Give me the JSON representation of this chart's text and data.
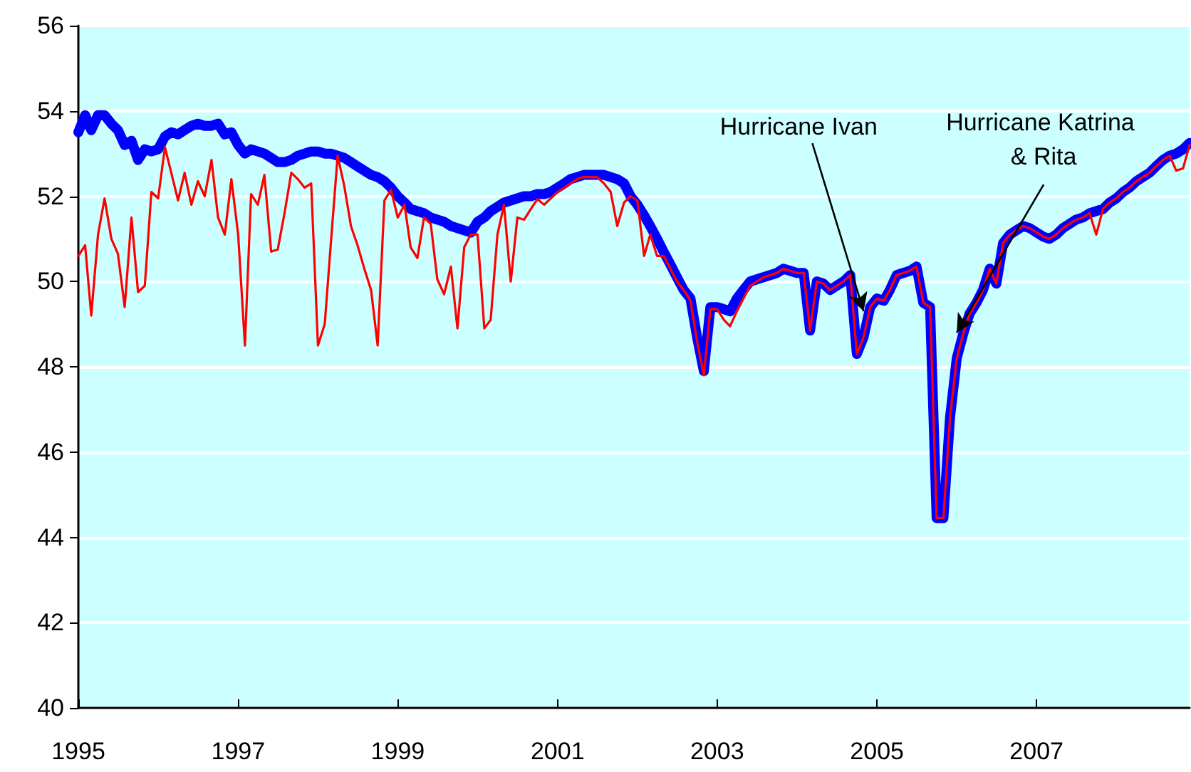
{
  "chart_data": {
    "type": "line",
    "x": [
      "1995-01",
      "1995-02",
      "1995-03",
      "1995-04",
      "1995-05",
      "1995-06",
      "1995-07",
      "1995-08",
      "1995-09",
      "1995-10",
      "1995-11",
      "1995-12",
      "1996-01",
      "1996-02",
      "1996-03",
      "1996-04",
      "1996-05",
      "1996-06",
      "1996-07",
      "1996-08",
      "1996-09",
      "1996-10",
      "1996-11",
      "1996-12",
      "1997-01",
      "1997-02",
      "1997-03",
      "1997-04",
      "1997-05",
      "1997-06",
      "1997-07",
      "1997-08",
      "1997-09",
      "1997-10",
      "1997-11",
      "1997-12",
      "1998-01",
      "1998-02",
      "1998-03",
      "1998-04",
      "1998-05",
      "1998-06",
      "1998-07",
      "1998-08",
      "1998-09",
      "1998-10",
      "1998-11",
      "1998-12",
      "1999-01",
      "1999-02",
      "1999-03",
      "1999-04",
      "1999-05",
      "1999-06",
      "1999-07",
      "1999-08",
      "1999-09",
      "1999-10",
      "1999-11",
      "1999-12",
      "2000-01",
      "2000-02",
      "2000-03",
      "2000-04",
      "2000-05",
      "2000-06",
      "2000-07",
      "2000-08",
      "2000-09",
      "2000-10",
      "2000-11",
      "2000-12",
      "2001-01",
      "2001-02",
      "2001-03",
      "2001-04",
      "2001-05",
      "2001-06",
      "2001-07",
      "2001-08",
      "2001-09",
      "2001-10",
      "2001-11",
      "2001-12",
      "2002-01",
      "2002-02",
      "2002-03",
      "2002-04",
      "2002-05",
      "2002-06",
      "2002-07",
      "2002-08",
      "2002-09",
      "2002-10",
      "2002-11",
      "2002-12",
      "2003-01",
      "2003-02",
      "2003-03",
      "2003-04",
      "2003-05",
      "2003-06",
      "2003-07",
      "2003-08",
      "2003-09",
      "2003-10",
      "2003-11",
      "2003-12",
      "2004-01",
      "2004-02",
      "2004-03",
      "2004-04",
      "2004-05",
      "2004-06",
      "2004-07",
      "2004-08",
      "2004-09",
      "2004-10",
      "2004-11",
      "2004-12",
      "2005-01",
      "2005-02",
      "2005-03",
      "2005-04",
      "2005-05",
      "2005-06",
      "2005-07",
      "2005-08",
      "2005-09",
      "2005-10",
      "2005-11",
      "2005-12",
      "2006-01",
      "2006-02",
      "2006-03",
      "2006-04",
      "2006-05",
      "2006-06",
      "2006-07",
      "2006-08",
      "2006-09",
      "2006-10",
      "2006-11",
      "2006-12",
      "2007-01",
      "2007-02",
      "2007-03",
      "2007-04",
      "2007-05",
      "2007-06",
      "2007-07",
      "2007-08",
      "2007-09",
      "2007-10",
      "2007-11",
      "2007-12",
      "2008-01",
      "2008-02",
      "2008-03",
      "2008-04",
      "2008-05",
      "2008-06",
      "2008-07",
      "2008-08",
      "2008-09",
      "2008-10",
      "2008-11",
      "2008-12"
    ],
    "series": [
      {
        "color": "#0000ff",
        "values": [
          53.5,
          53.9,
          53.55,
          53.9,
          53.9,
          53.7,
          53.55,
          53.2,
          53.3,
          52.85,
          53.1,
          53.05,
          53.1,
          53.4,
          53.5,
          53.45,
          53.55,
          53.65,
          53.7,
          53.65,
          53.65,
          53.7,
          53.45,
          53.5,
          53.2,
          53.0,
          53.1,
          53.05,
          53.0,
          52.9,
          52.8,
          52.8,
          52.85,
          52.95,
          53.0,
          53.05,
          53.05,
          53.0,
          53.0,
          52.95,
          52.9,
          52.8,
          52.7,
          52.6,
          52.5,
          52.45,
          52.35,
          52.2,
          52.0,
          51.85,
          51.7,
          51.65,
          51.6,
          51.5,
          51.45,
          51.4,
          51.3,
          51.25,
          51.2,
          51.15,
          51.4,
          51.5,
          51.65,
          51.75,
          51.85,
          51.9,
          51.95,
          52.0,
          52.0,
          52.05,
          52.05,
          52.1,
          52.2,
          52.3,
          52.4,
          52.45,
          52.5,
          52.5,
          52.5,
          52.5,
          52.45,
          52.4,
          52.3,
          52.0,
          51.8,
          51.55,
          51.3,
          51.0,
          50.7,
          50.4,
          50.1,
          49.8,
          49.6,
          48.7,
          47.9,
          49.4,
          49.4,
          49.35,
          49.3,
          49.6,
          49.8,
          50.0,
          50.05,
          50.1,
          50.15,
          50.2,
          50.3,
          50.25,
          50.2,
          50.2,
          48.85,
          50.0,
          49.95,
          49.8,
          49.9,
          50.0,
          50.15,
          48.3,
          48.7,
          49.4,
          49.6,
          49.55,
          49.8,
          50.15,
          50.2,
          50.25,
          50.35,
          49.5,
          49.4,
          44.45,
          44.45,
          46.8,
          48.2,
          48.8,
          49.25,
          49.5,
          49.8,
          50.3,
          49.95,
          50.9,
          51.1,
          51.2,
          51.3,
          51.25,
          51.15,
          51.05,
          51.0,
          51.1,
          51.25,
          51.35,
          51.45,
          51.5,
          51.6,
          51.65,
          51.7,
          51.85,
          51.95,
          52.1,
          52.2,
          52.35,
          52.45,
          52.55,
          52.7,
          52.85,
          52.95,
          53.0,
          53.1,
          53.25
        ]
      },
      {
        "color": "#ff0000",
        "values": [
          50.6,
          50.85,
          49.2,
          51.1,
          51.95,
          51.0,
          50.65,
          49.4,
          51.5,
          49.75,
          49.9,
          52.1,
          51.95,
          53.15,
          52.55,
          51.9,
          52.55,
          51.8,
          52.35,
          52.0,
          52.85,
          51.5,
          51.1,
          52.4,
          51.1,
          48.5,
          52.05,
          51.8,
          52.5,
          50.7,
          50.75,
          51.6,
          52.55,
          52.4,
          52.2,
          52.3,
          48.5,
          49.0,
          50.9,
          52.95,
          52.25,
          51.3,
          50.85,
          50.3,
          49.8,
          48.5,
          51.9,
          52.15,
          51.5,
          51.8,
          50.8,
          50.55,
          51.5,
          51.35,
          50.05,
          49.7,
          50.35,
          48.9,
          50.8,
          51.1,
          51.1,
          48.9,
          49.1,
          51.1,
          51.8,
          50.0,
          51.5,
          51.45,
          51.7,
          51.93,
          51.8,
          51.95,
          52.1,
          52.2,
          52.3,
          52.4,
          52.45,
          52.45,
          52.45,
          52.3,
          52.1,
          51.3,
          51.85,
          52.0,
          51.9,
          50.6,
          51.1,
          50.6,
          50.6,
          50.3,
          50.0,
          49.8,
          49.55,
          48.6,
          47.8,
          49.35,
          49.35,
          49.1,
          48.95,
          49.3,
          49.6,
          49.9,
          50.0,
          50.1,
          50.15,
          50.2,
          50.3,
          50.25,
          50.2,
          50.2,
          48.85,
          50.0,
          49.95,
          49.8,
          49.9,
          50.0,
          50.15,
          48.3,
          48.7,
          49.4,
          49.6,
          49.55,
          49.8,
          50.15,
          50.2,
          50.25,
          50.35,
          49.5,
          49.4,
          44.45,
          44.45,
          46.8,
          48.2,
          48.8,
          49.25,
          49.5,
          49.8,
          50.3,
          49.95,
          50.9,
          51.1,
          51.2,
          51.3,
          51.25,
          51.15,
          51.05,
          51.0,
          51.1,
          51.25,
          51.35,
          51.45,
          51.5,
          51.6,
          51.1,
          51.7,
          51.85,
          51.95,
          52.1,
          52.2,
          52.35,
          52.45,
          52.55,
          52.7,
          52.85,
          52.95,
          52.6,
          52.65,
          53.2
        ]
      }
    ],
    "xlim": [
      "1995-01",
      "2008-12"
    ],
    "xticks": [
      "1995",
      "1997",
      "1999",
      "2001",
      "2003",
      "2005",
      "2007"
    ],
    "ylim": [
      40,
      56
    ],
    "yticks": [
      40,
      42,
      44,
      46,
      48,
      50,
      52,
      54,
      56
    ],
    "grid": "y",
    "marker": "none",
    "line_style": "solid",
    "annotations": [
      {
        "text": "Hurricane Ivan",
        "x": "2004-11",
        "y": 49.3
      },
      {
        "text": "Hurricane Katrina & Rita",
        "x": "2006-01",
        "y": 48.8
      }
    ]
  }
}
